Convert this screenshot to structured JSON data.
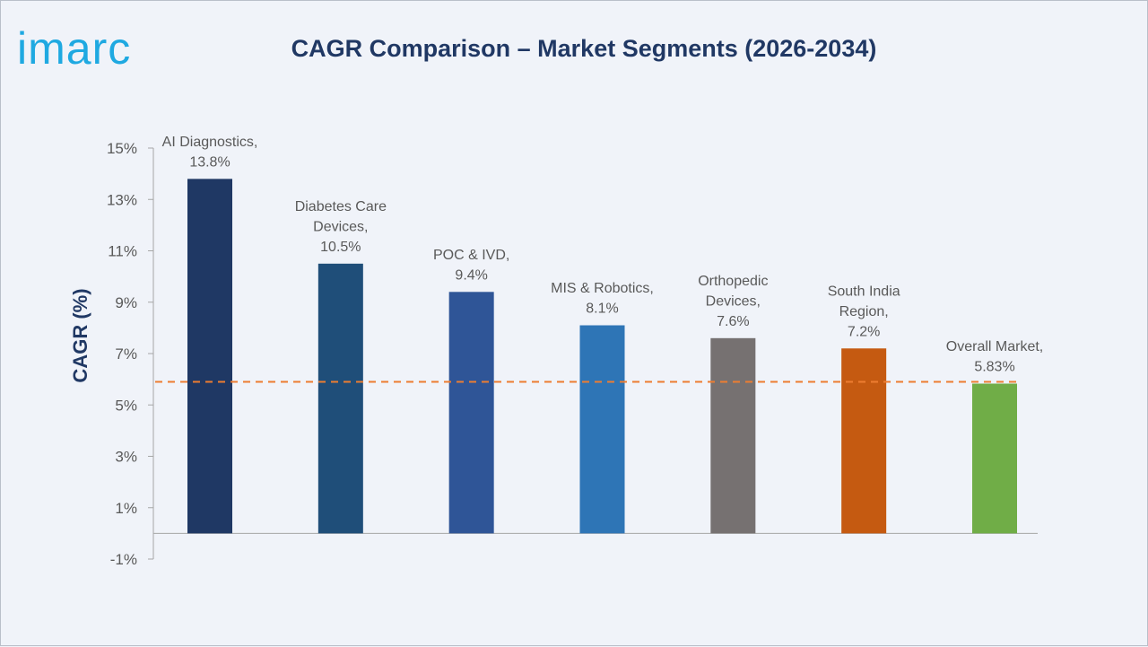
{
  "logo": {
    "text": "imarc"
  },
  "chart_data": {
    "type": "bar",
    "title": "CAGR Comparison – Market Segments (2026-2034)",
    "ylabel": "CAGR (%)",
    "xlabel": "",
    "ylim": [
      -1,
      15
    ],
    "yticks": [
      "15%",
      "13%",
      "11%",
      "9%",
      "7%",
      "5%",
      "3%",
      "1%",
      "-1%"
    ],
    "ytick_values": [
      15,
      13,
      11,
      9,
      7,
      5,
      3,
      1,
      -1
    ],
    "categories": [
      "AI Diagnostics",
      "Diabetes Care Devices",
      "POC & IVD",
      "MIS & Robotics",
      "Orthopedic Devices",
      "South India Region",
      "Overall Market"
    ],
    "values": [
      13.8,
      10.5,
      9.4,
      8.1,
      7.6,
      7.2,
      5.83
    ],
    "data_labels": [
      [
        "AI Diagnostics,",
        "13.8%"
      ],
      [
        "Diabetes Care",
        "Devices,",
        "10.5%"
      ],
      [
        "POC & IVD,",
        "9.4%"
      ],
      [
        "MIS & Robotics,",
        "8.1%"
      ],
      [
        "Orthopedic",
        "Devices,",
        "7.6%"
      ],
      [
        "South India",
        "Region,",
        "7.2%"
      ],
      [
        "Overall Market,",
        "5.83%"
      ]
    ],
    "colors": [
      "#1f3864",
      "#1f4e79",
      "#2f5597",
      "#2e75b6",
      "#767171",
      "#c55a11",
      "#70ad47"
    ],
    "reference_line": {
      "value": 5.83,
      "color": "#ed7d31",
      "style": "dashed"
    },
    "grid": false,
    "legend": "none"
  }
}
